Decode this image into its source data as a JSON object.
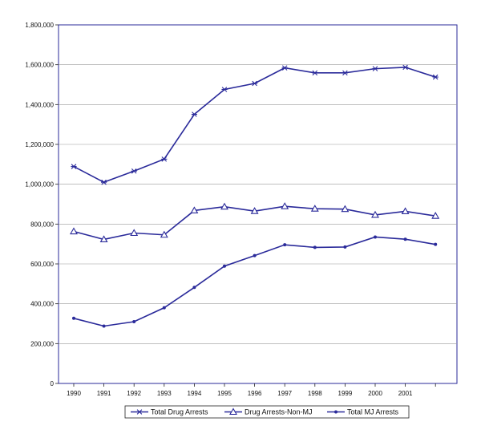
{
  "chart_data": {
    "type": "line",
    "title": "",
    "xlabel": "",
    "ylabel": "",
    "categories": [
      "1990",
      "1991",
      "1992",
      "1993",
      "1994",
      "1995",
      "1996",
      "1997",
      "1998",
      "1999",
      "2000",
      "2001",
      ""
    ],
    "ylim": [
      0,
      1800000
    ],
    "yticks": [
      0,
      200000,
      400000,
      600000,
      800000,
      1000000,
      1200000,
      1400000,
      1600000,
      1800000
    ],
    "ytick_labels": [
      "0",
      "200,000",
      "400,000",
      "600,000",
      "800,000",
      "1,000,000",
      "1,200,000",
      "1,400,000",
      "1,600,000",
      "1,800,000"
    ],
    "grid": "horizontal",
    "legend_position": "bottom",
    "line_color": "#2a2a9a",
    "series": [
      {
        "name": "Total Drug Arrests",
        "marker": "asterisk",
        "values": [
          1089000,
          1010000,
          1066000,
          1126000,
          1351000,
          1476000,
          1506000,
          1584000,
          1559000,
          1559000,
          1580000,
          1587000,
          1538000
        ]
      },
      {
        "name": "Drug Arrests-Non-MJ",
        "marker": "triangle",
        "values": [
          763000,
          723000,
          755000,
          746000,
          868000,
          887000,
          865000,
          889000,
          877000,
          875000,
          846000,
          864000,
          841000
        ]
      },
      {
        "name": "Total MJ Arrests",
        "marker": "dot",
        "values": [
          327000,
          288000,
          310000,
          380000,
          482000,
          589000,
          642000,
          696000,
          683000,
          685000,
          735000,
          724000,
          698000
        ]
      }
    ]
  }
}
